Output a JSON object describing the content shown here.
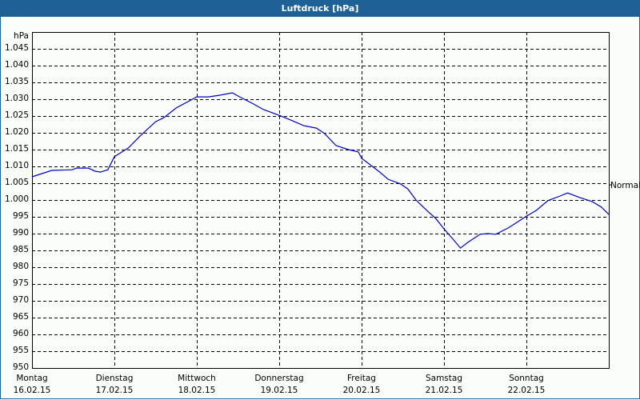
{
  "window": {
    "title": "Luftdruck [hPa]"
  },
  "colors": {
    "titlebar": "#1d6197",
    "line": "#0000c0",
    "grid": "#000000",
    "background": "#fbfdfb"
  },
  "reference_label": "Normal",
  "chart_data": {
    "type": "line",
    "title": "Luftdruck [hPa]",
    "xlabel": "",
    "ylabel": "hPa",
    "ylim": [
      950,
      1050
    ],
    "yticks": [
      "950",
      "955",
      "960",
      "965",
      "970",
      "975",
      "980",
      "985",
      "990",
      "995",
      "1.000",
      "1.005",
      "1.010",
      "1.015",
      "1.020",
      "1.025",
      "1.030",
      "1.035",
      "1.040",
      "1.045"
    ],
    "categories": [
      {
        "day": "Montag",
        "date": "16.02.15"
      },
      {
        "day": "Dienstag",
        "date": "17.02.15"
      },
      {
        "day": "Mittwoch",
        "date": "18.02.15"
      },
      {
        "day": "Donnerstag",
        "date": "19.02.15"
      },
      {
        "day": "Freitag",
        "date": "20.02.15"
      },
      {
        "day": "Samstag",
        "date": "21.02.15"
      },
      {
        "day": "Sonntag",
        "date": "22.02.15"
      }
    ],
    "grid": true,
    "annotation": {
      "label": "Normal",
      "position": "right",
      "value": 1004.5
    },
    "series": [
      {
        "name": "Luftdruck",
        "x_days": [
          0,
          0.24,
          0.49,
          0.54,
          0.68,
          0.73,
          0.76,
          0.83,
          0.92,
          1.0,
          1.17,
          1.31,
          1.5,
          1.6,
          1.75,
          2.0,
          2.14,
          2.28,
          2.43,
          2.52,
          2.67,
          2.81,
          3.0,
          3.16,
          3.3,
          3.45,
          3.55,
          3.69,
          3.84,
          3.96,
          4.0,
          4.13,
          4.22,
          4.32,
          4.47,
          4.56,
          4.66,
          4.8,
          4.9,
          5.0,
          5.1,
          5.2,
          5.29,
          5.44,
          5.53,
          5.63,
          5.78,
          5.87,
          6.0,
          6.12,
          6.26,
          6.41,
          6.5,
          6.65,
          6.8,
          6.91,
          7.0
        ],
        "values": [
          1006.9,
          1008.8,
          1009.0,
          1009.5,
          1009.5,
          1009.0,
          1008.6,
          1008.3,
          1009.0,
          1012.9,
          1015.5,
          1019.0,
          1023.3,
          1024.5,
          1027.4,
          1030.7,
          1030.7,
          1031.2,
          1031.9,
          1030.7,
          1028.8,
          1026.9,
          1025.2,
          1023.6,
          1022.1,
          1021.4,
          1019.8,
          1016.2,
          1015.0,
          1014.3,
          1012.4,
          1010.0,
          1008.3,
          1006.2,
          1004.8,
          1003.3,
          1000.0,
          996.7,
          994.5,
          991.4,
          988.6,
          985.7,
          987.4,
          989.8,
          990.0,
          989.8,
          991.7,
          993.1,
          995.2,
          996.9,
          999.8,
          1001.2,
          1002.1,
          1000.7,
          999.5,
          997.9,
          995.7
        ]
      }
    ]
  }
}
